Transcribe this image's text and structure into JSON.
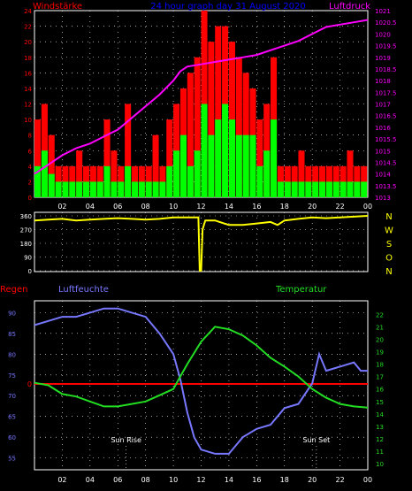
{
  "colors": {
    "wind_gust": "#ff0000",
    "wind_avg": "#00ff00",
    "pressure": "#ff00ff",
    "direction": "#ffff00",
    "humidity": "#7777ff",
    "temperature": "#22dd22",
    "rain": "#ff0000",
    "axis": "#ffffff",
    "title": "#0000ff",
    "grid": "#ffffff"
  },
  "chart_data": [
    {
      "id": "wind",
      "type": "bar",
      "title": "24 hour graph day  31 August 2020",
      "left_axis_label": "Windstärke",
      "right_axis_label": "Luftdruck",
      "left_ylim": [
        0,
        24
      ],
      "left_ticks": [
        "0",
        "2",
        "4",
        "6",
        "8",
        "10",
        "12",
        "14",
        "16",
        "18",
        "20",
        "22",
        "24"
      ],
      "right_ylim": [
        1013,
        1021
      ],
      "right_ticks": [
        "1013",
        "1013.5",
        "1014",
        "1014.5",
        "1015",
        "1015.5",
        "1016",
        "1016.5",
        "1017",
        "1017.5",
        "1018",
        "1018.5",
        "1019",
        "1019.5",
        "1020",
        "1020.5",
        "1021"
      ],
      "x_ticks": [
        "02",
        "04",
        "06",
        "08",
        "10",
        "12",
        "14",
        "16",
        "18",
        "20",
        "22",
        "00"
      ],
      "grid": true,
      "series": [
        {
          "name": "gust",
          "kind": "bar",
          "x": [
            0,
            0.5,
            1,
            1.5,
            2,
            2.5,
            3,
            3.5,
            4,
            4.5,
            5,
            5.5,
            6,
            6.5,
            7,
            7.5,
            8,
            8.5,
            9,
            9.5,
            10,
            10.5,
            11,
            11.5,
            12,
            12.5,
            13,
            13.5,
            14,
            14.5,
            15,
            15.5,
            16,
            16.5,
            17,
            17.5,
            18,
            18.5,
            19,
            19.5,
            20,
            20.5,
            21,
            21.5,
            22,
            22.5,
            23,
            23.5
          ],
          "values": [
            10,
            12,
            8,
            4,
            4,
            4,
            6,
            4,
            4,
            4,
            10,
            6,
            4,
            12,
            4,
            4,
            4,
            8,
            4,
            10,
            12,
            14,
            16,
            18,
            24,
            20,
            22,
            22,
            20,
            18,
            16,
            14,
            10,
            12,
            18,
            4,
            4,
            4,
            6,
            4,
            4,
            4,
            4,
            4,
            4,
            6,
            4,
            4
          ]
        },
        {
          "name": "average",
          "kind": "bar",
          "x": [
            0,
            0.5,
            1,
            1.5,
            2,
            2.5,
            3,
            3.5,
            4,
            4.5,
            5,
            5.5,
            6,
            6.5,
            7,
            7.5,
            8,
            8.5,
            9,
            9.5,
            10,
            10.5,
            11,
            11.5,
            12,
            12.5,
            13,
            13.5,
            14,
            14.5,
            15,
            15.5,
            16,
            16.5,
            17,
            17.5,
            18,
            18.5,
            19,
            19.5,
            20,
            20.5,
            21,
            21.5,
            22,
            22.5,
            23,
            23.5
          ],
          "values": [
            4,
            6,
            3,
            2,
            2,
            2,
            2,
            2,
            2,
            2,
            4,
            2,
            2,
            4,
            2,
            2,
            2,
            2,
            2,
            4,
            6,
            8,
            4,
            6,
            12,
            8,
            10,
            12,
            10,
            8,
            8,
            8,
            4,
            6,
            10,
            2,
            2,
            2,
            2,
            2,
            2,
            2,
            2,
            2,
            2,
            2,
            2,
            2
          ]
        },
        {
          "name": "pressure",
          "kind": "line",
          "axis": "right",
          "x": [
            0,
            1,
            2,
            3,
            4,
            5,
            6,
            7,
            8,
            9,
            10,
            10.5,
            11,
            12,
            13,
            14,
            15,
            16,
            17,
            18,
            19,
            20,
            21,
            22,
            23,
            24
          ],
          "values": [
            1014.0,
            1014.4,
            1014.8,
            1015.1,
            1015.3,
            1015.6,
            1015.9,
            1016.4,
            1016.9,
            1017.4,
            1018.0,
            1018.4,
            1018.6,
            1018.7,
            1018.8,
            1018.9,
            1019.0,
            1019.1,
            1019.3,
            1019.5,
            1019.7,
            1020.0,
            1020.3,
            1020.4,
            1020.5,
            1020.6
          ]
        }
      ]
    },
    {
      "id": "direction",
      "type": "line",
      "left_ylim": [
        0,
        360
      ],
      "left_ticks": [
        "0",
        "90",
        "180",
        "270",
        "360"
      ],
      "right_labels": [
        "N",
        "W",
        "S",
        "O",
        "N"
      ],
      "grid": true,
      "series": [
        {
          "name": "direction",
          "x": [
            0,
            1,
            2,
            3,
            4,
            5,
            6,
            7,
            8,
            9,
            10,
            11,
            11.8,
            11.9,
            12,
            12.1,
            12.3,
            13,
            14,
            15,
            16,
            17,
            17.5,
            18,
            19,
            20,
            21,
            22,
            23,
            24
          ],
          "values": [
            330,
            335,
            340,
            330,
            335,
            340,
            345,
            340,
            335,
            340,
            350,
            350,
            350,
            0,
            0,
            270,
            330,
            330,
            300,
            300,
            310,
            320,
            300,
            330,
            340,
            350,
            345,
            350,
            355,
            360
          ]
        }
      ]
    },
    {
      "id": "humidity_temperature",
      "type": "line",
      "left_axis_label": "Regen",
      "left_ticks": [
        "0"
      ],
      "mid_axis_label": "Luftfeuchte",
      "mid_ylim": [
        55,
        90
      ],
      "mid_ticks": [
        "55",
        "60",
        "65",
        "70",
        "75",
        "80",
        "85",
        "90"
      ],
      "right_axis_label": "Temperatur",
      "right_ylim": [
        10,
        22
      ],
      "right_ticks": [
        "10",
        "11",
        "12",
        "13",
        "14",
        "15",
        "16",
        "17",
        "18",
        "19",
        "20",
        "21",
        "22"
      ],
      "x_ticks": [
        "02",
        "04",
        "06",
        "08",
        "10",
        "12",
        "14",
        "16",
        "18",
        "20",
        "22",
        "00"
      ],
      "annotations": [
        {
          "text": "Sun Rise",
          "x": 6.6
        },
        {
          "text": "Sun Set",
          "x": 20.3
        }
      ],
      "grid": true,
      "series": [
        {
          "name": "humidity",
          "axis": "mid",
          "x": [
            0,
            1,
            2,
            3,
            4,
            5,
            6,
            7,
            8,
            9,
            10,
            10.5,
            11,
            11.5,
            12,
            13,
            14,
            14.5,
            15,
            16,
            17,
            17.5,
            18,
            19,
            20,
            20.5,
            21,
            22,
            23,
            23.5,
            24
          ],
          "values": [
            87,
            88,
            89,
            89,
            90,
            91,
            91,
            90,
            89,
            85,
            80,
            74,
            66,
            60,
            57,
            56,
            56,
            58,
            60,
            62,
            63,
            65,
            67,
            68,
            73,
            80,
            76,
            77,
            78,
            76,
            76
          ]
        },
        {
          "name": "temperature",
          "axis": "right",
          "x": [
            0,
            1,
            2,
            3,
            4,
            5,
            6,
            7,
            8,
            9,
            10,
            10.5,
            11,
            12,
            13,
            14,
            15,
            16,
            17,
            18,
            19,
            20,
            21,
            22,
            23,
            24
          ],
          "values": [
            16.5,
            16.3,
            15.6,
            15.4,
            15.0,
            14.6,
            14.6,
            14.8,
            15.0,
            15.5,
            16.0,
            17.0,
            18.0,
            19.8,
            21.0,
            20.8,
            20.3,
            19.5,
            18.5,
            17.8,
            17.0,
            16.0,
            15.3,
            14.8,
            14.6,
            14.5
          ]
        },
        {
          "name": "rain",
          "axis": "left",
          "x": [
            0,
            24
          ],
          "values": [
            0,
            0
          ]
        }
      ]
    }
  ]
}
